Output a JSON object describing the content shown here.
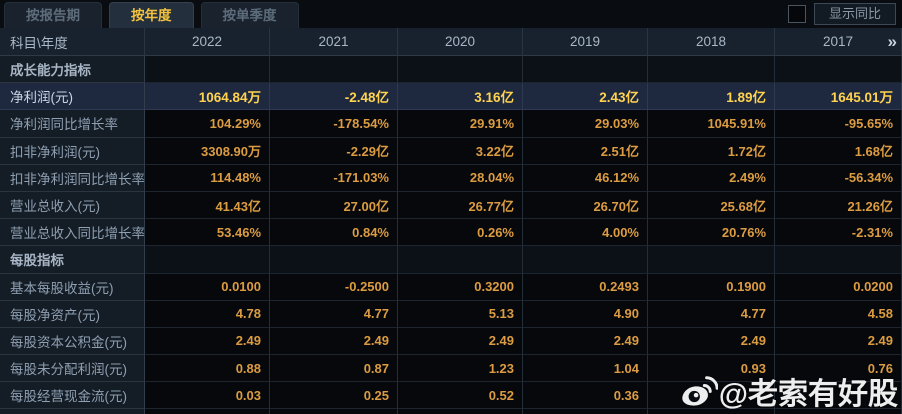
{
  "tabs": [
    {
      "label": "按报告期",
      "active": false
    },
    {
      "label": "按年度",
      "active": true
    },
    {
      "label": "按单季度",
      "active": false
    }
  ],
  "controls": {
    "show_yoy_label": "显示同比",
    "checkbox_checked": false
  },
  "table": {
    "corner_header": "科目\\年度",
    "year_columns": [
      "2022",
      "2021",
      "2020",
      "2019",
      "2018",
      "2017"
    ],
    "more_icon": "»",
    "rows": [
      {
        "type": "section",
        "label": "成长能力指标",
        "values": [
          "",
          "",
          "",
          "",
          "",
          ""
        ]
      },
      {
        "type": "highlight",
        "label": "净利润(元)",
        "values": [
          "1064.84万",
          "-2.48亿",
          "3.16亿",
          "2.43亿",
          "1.89亿",
          "1645.01万"
        ]
      },
      {
        "type": "data",
        "label": "净利润同比增长率",
        "values": [
          "104.29%",
          "-178.54%",
          "29.91%",
          "29.03%",
          "1045.91%",
          "-95.65%"
        ]
      },
      {
        "type": "data",
        "label": "扣非净利润(元)",
        "values": [
          "3308.90万",
          "-2.29亿",
          "3.22亿",
          "2.51亿",
          "1.72亿",
          "1.68亿"
        ]
      },
      {
        "type": "data",
        "label": "扣非净利润同比增长率",
        "values": [
          "114.48%",
          "-171.03%",
          "28.04%",
          "46.12%",
          "2.49%",
          "-56.34%"
        ]
      },
      {
        "type": "data",
        "label": "营业总收入(元)",
        "values": [
          "41.43亿",
          "27.00亿",
          "26.77亿",
          "26.70亿",
          "25.68亿",
          "21.26亿"
        ]
      },
      {
        "type": "data",
        "label": "营业总收入同比增长率",
        "values": [
          "53.46%",
          "0.84%",
          "0.26%",
          "4.00%",
          "20.76%",
          "-2.31%"
        ]
      },
      {
        "type": "section",
        "label": "每股指标",
        "values": [
          "",
          "",
          "",
          "",
          "",
          ""
        ]
      },
      {
        "type": "data",
        "label": "基本每股收益(元)",
        "values": [
          "0.0100",
          "-0.2500",
          "0.3200",
          "0.2493",
          "0.1900",
          "0.0200"
        ]
      },
      {
        "type": "data",
        "label": "每股净资产(元)",
        "values": [
          "4.78",
          "4.77",
          "5.13",
          "4.90",
          "4.77",
          "4.58"
        ]
      },
      {
        "type": "data",
        "label": "每股资本公积金(元)",
        "values": [
          "2.49",
          "2.49",
          "2.49",
          "2.49",
          "2.49",
          "2.49"
        ]
      },
      {
        "type": "data",
        "label": "每股未分配利润(元)",
        "values": [
          "0.88",
          "0.87",
          "1.23",
          "1.04",
          "0.93",
          "0.76"
        ]
      },
      {
        "type": "data",
        "label": "每股经营现金流(元)",
        "values": [
          "0.03",
          "0.25",
          "0.52",
          "0.36",
          "",
          ""
        ]
      }
    ]
  },
  "watermark": {
    "text": "@老索有好股",
    "icon": "weibo-logo"
  },
  "colors": {
    "accent_gold": "#f2c23e",
    "value_orange": "#dc9c41",
    "highlight_value_gold": "#ffd34f",
    "highlight_row_bg": "#1e2940",
    "header_bg": "#18222e",
    "label_col_bg": "#141c26",
    "data_cell_bg": "#06080c",
    "screen_bg": "#0a0e14"
  }
}
